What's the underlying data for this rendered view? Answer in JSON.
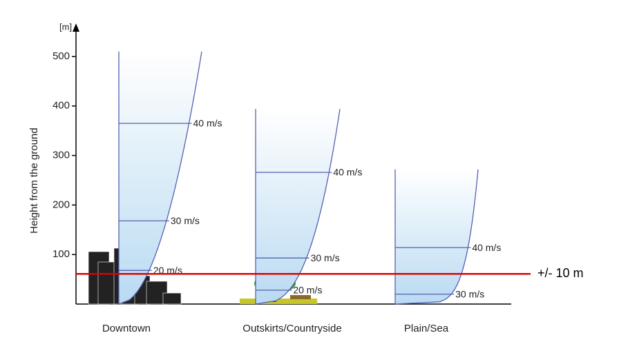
{
  "chart_data": {
    "type": "wind-profile",
    "y_label": "Height from the ground",
    "y_unit": "[m]",
    "ylim": [
      0,
      550
    ],
    "yticks": [
      100,
      200,
      300,
      400,
      500
    ],
    "profiles": [
      {
        "name": "Downtown",
        "top": 510,
        "levels": [
          {
            "label": "40 m/s",
            "height": 365
          },
          {
            "label": "30 m/s",
            "height": 168
          },
          {
            "label": "20 m/s",
            "height": 68
          }
        ]
      },
      {
        "name": "Outskirts/Countryside",
        "top": 394,
        "levels": [
          {
            "label": "40 m/s",
            "height": 266
          },
          {
            "label": "30 m/s",
            "height": 93
          },
          {
            "label": "20 m/s",
            "height": 28
          }
        ]
      },
      {
        "name": "Plain/Sea",
        "top": 272,
        "levels": [
          {
            "label": "40 m/s",
            "height": 114
          },
          {
            "label": "30 m/s",
            "height": 20
          }
        ]
      }
    ],
    "reference_line": {
      "label": "+/- 10 m",
      "height": 61,
      "color": "#e00000"
    }
  }
}
